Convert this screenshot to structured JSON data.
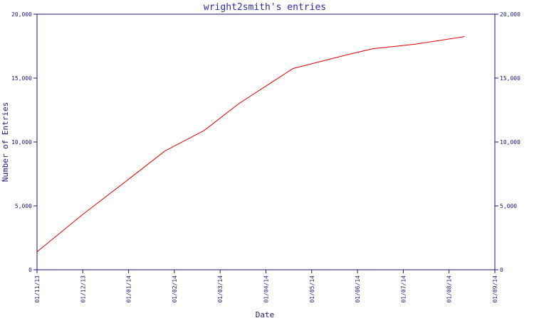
{
  "chart_data": {
    "type": "line",
    "title": "wright2smith's entries",
    "xlabel": "Date",
    "ylabel": "Number of Entries",
    "x_ticks": [
      "01/11/13",
      "01/12/13",
      "01/01/14",
      "01/02/14",
      "01/03/14",
      "01/04/14",
      "01/05/14",
      "01/06/14",
      "01/07/14",
      "01/08/14",
      "01/09/14"
    ],
    "y_ticks": [
      "0",
      "5,000",
      "10,000",
      "15,000",
      "20,000"
    ],
    "ylim": [
      0,
      20000
    ],
    "xlim": [
      "2013-11-01",
      "2014-09-01"
    ],
    "grid": false,
    "right_axis_mirrored": true,
    "colors": {
      "axes": "#1a1a7a",
      "title": "#2a2aa8",
      "series": "#e00000"
    },
    "series": [
      {
        "x": [
          "2013-11-01",
          "2013-12-01",
          "2014-01-01",
          "2014-01-25",
          "2014-02-20",
          "2014-03-15",
          "2014-04-20",
          "2014-05-25",
          "2014-06-12",
          "2014-07-10",
          "2014-08-12"
        ],
        "values": [
          1400,
          4300,
          7100,
          9300,
          10900,
          13000,
          15750,
          16800,
          17300,
          17650,
          18250
        ]
      }
    ]
  }
}
